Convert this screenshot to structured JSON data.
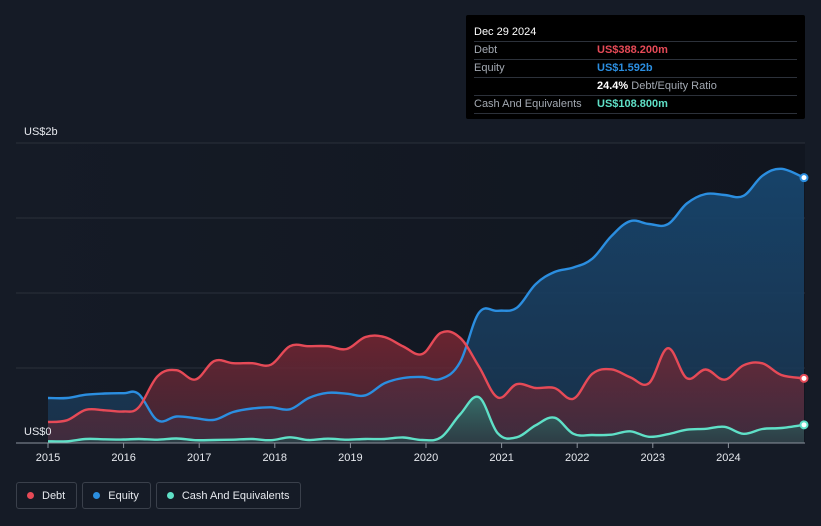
{
  "tooltip": {
    "date": "Dec 29 2024",
    "debt_label": "Debt",
    "debt_value": "US$388.200m",
    "equity_label": "Equity",
    "equity_value": "US$1.592b",
    "ratio_value": "24.4%",
    "ratio_label": "Debt/Equity Ratio",
    "cash_label": "Cash And Equivalents",
    "cash_value": "US$108.800m"
  },
  "legend": [
    {
      "label": "Debt",
      "color": "#e64a57"
    },
    {
      "label": "Equity",
      "color": "#2b8ee0"
    },
    {
      "label": "Cash And Equivalents",
      "color": "#5fe0c7"
    }
  ],
  "chart_data": {
    "type": "area",
    "y_unit_labels": {
      "top": "US$2b",
      "bottom": "US$0"
    },
    "ylim": [
      0,
      1.8
    ],
    "xlim": [
      2015.0,
      2025.0
    ],
    "x_ticks": [
      "2015",
      "2016",
      "2017",
      "2018",
      "2019",
      "2020",
      "2021",
      "2022",
      "2023",
      "2024"
    ],
    "series": [
      {
        "name": "Debt",
        "color": "#e64a57",
        "points": [
          [
            2015.0,
            0.126
          ],
          [
            2015.25,
            0.136
          ],
          [
            2015.5,
            0.199
          ],
          [
            2015.75,
            0.196
          ],
          [
            2016.0,
            0.189
          ],
          [
            2016.2,
            0.214
          ],
          [
            2016.45,
            0.401
          ],
          [
            2016.7,
            0.437
          ],
          [
            2016.95,
            0.381
          ],
          [
            2017.2,
            0.492
          ],
          [
            2017.45,
            0.479
          ],
          [
            2017.7,
            0.479
          ],
          [
            2017.95,
            0.47
          ],
          [
            2018.2,
            0.581
          ],
          [
            2018.45,
            0.581
          ],
          [
            2018.7,
            0.581
          ],
          [
            2018.95,
            0.564
          ],
          [
            2019.2,
            0.636
          ],
          [
            2019.45,
            0.636
          ],
          [
            2019.7,
            0.579
          ],
          [
            2019.95,
            0.534
          ],
          [
            2020.2,
            0.662
          ],
          [
            2020.45,
            0.632
          ],
          [
            2020.7,
            0.459
          ],
          [
            2020.95,
            0.273
          ],
          [
            2021.2,
            0.353
          ],
          [
            2021.45,
            0.33
          ],
          [
            2021.7,
            0.33
          ],
          [
            2021.95,
            0.266
          ],
          [
            2022.2,
            0.415
          ],
          [
            2022.45,
            0.442
          ],
          [
            2022.7,
            0.395
          ],
          [
            2022.95,
            0.359
          ],
          [
            2023.2,
            0.569
          ],
          [
            2023.45,
            0.389
          ],
          [
            2023.7,
            0.441
          ],
          [
            2023.95,
            0.38
          ],
          [
            2024.2,
            0.466
          ],
          [
            2024.45,
            0.478
          ],
          [
            2024.7,
            0.408
          ],
          [
            2025.0,
            0.388
          ]
        ]
      },
      {
        "name": "Equity",
        "color": "#2b8ee0",
        "points": [
          [
            2015.0,
            0.27
          ],
          [
            2015.25,
            0.27
          ],
          [
            2015.5,
            0.29
          ],
          [
            2015.75,
            0.297
          ],
          [
            2016.0,
            0.299
          ],
          [
            2016.2,
            0.294
          ],
          [
            2016.45,
            0.136
          ],
          [
            2016.7,
            0.159
          ],
          [
            2016.95,
            0.149
          ],
          [
            2017.2,
            0.139
          ],
          [
            2017.45,
            0.186
          ],
          [
            2017.7,
            0.207
          ],
          [
            2017.95,
            0.214
          ],
          [
            2018.2,
            0.202
          ],
          [
            2018.45,
            0.27
          ],
          [
            2018.7,
            0.301
          ],
          [
            2018.95,
            0.296
          ],
          [
            2019.2,
            0.286
          ],
          [
            2019.45,
            0.358
          ],
          [
            2019.7,
            0.39
          ],
          [
            2019.95,
            0.396
          ],
          [
            2020.2,
            0.385
          ],
          [
            2020.45,
            0.484
          ],
          [
            2020.7,
            0.781
          ],
          [
            2020.95,
            0.793
          ],
          [
            2021.2,
            0.811
          ],
          [
            2021.45,
            0.953
          ],
          [
            2021.7,
            1.026
          ],
          [
            2021.95,
            1.053
          ],
          [
            2022.2,
            1.106
          ],
          [
            2022.45,
            1.24
          ],
          [
            2022.7,
            1.331
          ],
          [
            2022.95,
            1.314
          ],
          [
            2023.2,
            1.313
          ],
          [
            2023.45,
            1.437
          ],
          [
            2023.7,
            1.494
          ],
          [
            2023.95,
            1.488
          ],
          [
            2024.2,
            1.483
          ],
          [
            2024.45,
            1.603
          ],
          [
            2024.7,
            1.645
          ],
          [
            2025.0,
            1.592
          ]
        ]
      },
      {
        "name": "Cash And Equivalents",
        "color": "#5fe0c7",
        "points": [
          [
            2015.0,
            0.01
          ],
          [
            2015.25,
            0.01
          ],
          [
            2015.5,
            0.024
          ],
          [
            2015.75,
            0.022
          ],
          [
            2016.0,
            0.021
          ],
          [
            2016.2,
            0.024
          ],
          [
            2016.45,
            0.02
          ],
          [
            2016.7,
            0.027
          ],
          [
            2016.95,
            0.017
          ],
          [
            2017.2,
            0.018
          ],
          [
            2017.45,
            0.02
          ],
          [
            2017.7,
            0.024
          ],
          [
            2017.95,
            0.017
          ],
          [
            2018.2,
            0.034
          ],
          [
            2018.45,
            0.018
          ],
          [
            2018.7,
            0.026
          ],
          [
            2018.95,
            0.02
          ],
          [
            2019.2,
            0.024
          ],
          [
            2019.45,
            0.024
          ],
          [
            2019.7,
            0.033
          ],
          [
            2019.95,
            0.018
          ],
          [
            2020.2,
            0.034
          ],
          [
            2020.45,
            0.171
          ],
          [
            2020.7,
            0.275
          ],
          [
            2020.95,
            0.058
          ],
          [
            2021.2,
            0.034
          ],
          [
            2021.45,
            0.106
          ],
          [
            2021.7,
            0.152
          ],
          [
            2021.95,
            0.055
          ],
          [
            2022.2,
            0.048
          ],
          [
            2022.45,
            0.05
          ],
          [
            2022.7,
            0.07
          ],
          [
            2022.95,
            0.037
          ],
          [
            2023.2,
            0.053
          ],
          [
            2023.45,
            0.08
          ],
          [
            2023.7,
            0.085
          ],
          [
            2023.95,
            0.097
          ],
          [
            2024.2,
            0.055
          ],
          [
            2024.45,
            0.084
          ],
          [
            2024.7,
            0.09
          ],
          [
            2025.0,
            0.109
          ]
        ]
      }
    ]
  }
}
